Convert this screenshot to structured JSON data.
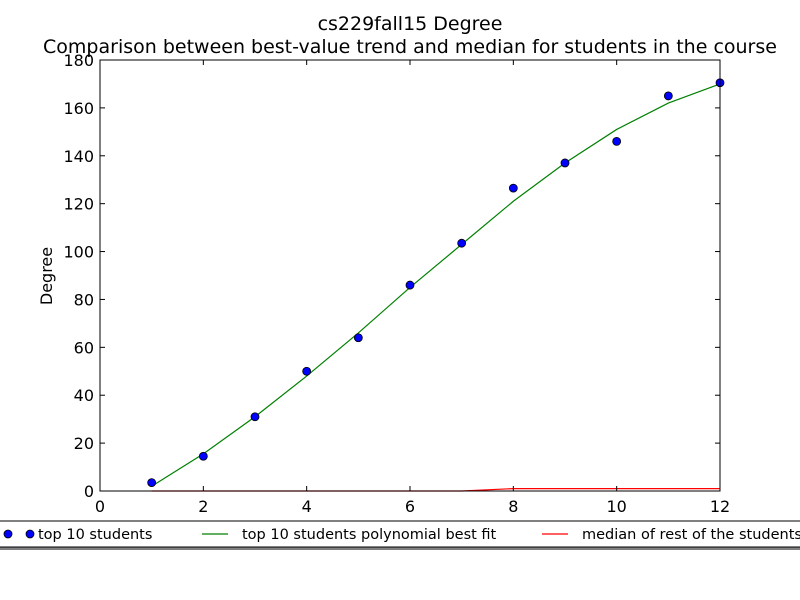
{
  "chart_data": {
    "type": "line",
    "title": "cs229fall15 Degree",
    "subtitle": "Comparison between best-value trend and median for students in the course",
    "xlabel": "",
    "ylabel": "Degree",
    "xlim": [
      0,
      12
    ],
    "ylim": [
      0,
      180
    ],
    "x_ticks": [
      "0",
      "2",
      "4",
      "6",
      "8",
      "10",
      "12"
    ],
    "y_ticks": [
      "0",
      "20",
      "40",
      "60",
      "80",
      "100",
      "120",
      "140",
      "160",
      "180"
    ],
    "grid": false,
    "legend_position": "bottom",
    "series": [
      {
        "name": "top 10 students",
        "kind": "scatter",
        "color": "#0000ff",
        "x": [
          1,
          2,
          3,
          4,
          5,
          6,
          7,
          8,
          9,
          10,
          11,
          12
        ],
        "y": [
          3.5,
          14.5,
          31,
          50,
          64,
          86,
          103.5,
          126.5,
          137,
          146,
          165,
          170.5
        ]
      },
      {
        "name": "top 10 students polynomial best fit",
        "kind": "line",
        "color": "#008000",
        "x": [
          1,
          2,
          3,
          4,
          5,
          6,
          7,
          8,
          9,
          10,
          11,
          12
        ],
        "y": [
          2,
          15.5,
          31,
          48,
          66,
          85,
          103,
          121,
          137,
          151,
          162,
          170
        ]
      },
      {
        "name": "median of rest of the students",
        "kind": "line",
        "color": "#ff0000",
        "x": [
          1,
          2,
          3,
          4,
          5,
          6,
          7,
          8,
          9,
          10,
          11,
          12
        ],
        "y": [
          0,
          0,
          0,
          0,
          0,
          0,
          0,
          1,
          1,
          1,
          1,
          1
        ]
      }
    ]
  }
}
